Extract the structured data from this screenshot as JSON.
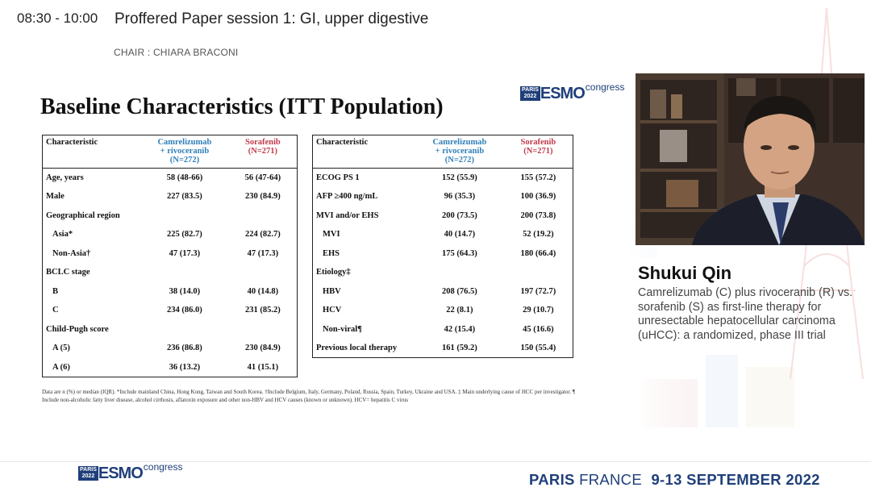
{
  "session": {
    "time": "08:30 - 10:00",
    "title": "Proffered Paper session 1: GI, upper digestive",
    "chair": "CHAIR : CHIARA BRACONI"
  },
  "logo": {
    "city": "PARIS",
    "year": "2022",
    "brand": "ESMO",
    "suffix": "congress"
  },
  "slide": {
    "title": "Baseline Characteristics (ITT Population)",
    "headers": {
      "characteristic": "Characteristic",
      "arm1_line1": "Camrelizumab",
      "arm1_line2": "+ rivoceranib",
      "arm1_n": "(N=272)",
      "arm2_line1": "Sorafenib",
      "arm2_n": "(N=271)"
    },
    "left_rows": [
      {
        "label": "Age, years",
        "a": "58 (48-66)",
        "b": "56 (47-64)",
        "indent": false
      },
      {
        "label": "Male",
        "a": "227 (83.5)",
        "b": "230 (84.9)",
        "indent": false
      },
      {
        "label": "Geographical region",
        "a": "",
        "b": "",
        "indent": false
      },
      {
        "label": "Asia*",
        "a": "225 (82.7)",
        "b": "224 (82.7)",
        "indent": true
      },
      {
        "label": "Non-Asia†",
        "a": "47 (17.3)",
        "b": "47 (17.3)",
        "indent": true
      },
      {
        "label": "BCLC stage",
        "a": "",
        "b": "",
        "indent": false
      },
      {
        "label": "B",
        "a": "38 (14.0)",
        "b": "40 (14.8)",
        "indent": true
      },
      {
        "label": "C",
        "a": "234 (86.0)",
        "b": "231 (85.2)",
        "indent": true
      },
      {
        "label": "Child-Pugh score",
        "a": "",
        "b": "",
        "indent": false
      },
      {
        "label": "A (5)",
        "a": "236 (86.8)",
        "b": "230 (84.9)",
        "indent": true
      },
      {
        "label": "A (6)",
        "a": "36 (13.2)",
        "b": "41 (15.1)",
        "indent": true
      }
    ],
    "right_rows": [
      {
        "label": "ECOG PS 1",
        "a": "152 (55.9)",
        "b": "155 (57.2)",
        "indent": false
      },
      {
        "label": "AFP ≥400 ng/mL",
        "a": "96 (35.3)",
        "b": "100 (36.9)",
        "indent": false
      },
      {
        "label": "MVI and/or EHS",
        "a": "200 (73.5)",
        "b": "200 (73.8)",
        "indent": false
      },
      {
        "label": "MVI",
        "a": "40 (14.7)",
        "b": "52 (19.2)",
        "indent": true
      },
      {
        "label": "EHS",
        "a": "175 (64.3)",
        "b": "180 (66.4)",
        "indent": true
      },
      {
        "label": "Etiology‡",
        "a": "",
        "b": "",
        "indent": false
      },
      {
        "label": "HBV",
        "a": "208 (76.5)",
        "b": "197 (72.7)",
        "indent": true
      },
      {
        "label": "HCV",
        "a": "22 (8.1)",
        "b": "29 (10.7)",
        "indent": true
      },
      {
        "label": "Non-viral¶",
        "a": "42 (15.4)",
        "b": "45 (16.6)",
        "indent": true
      },
      {
        "label": "Previous local therapy",
        "a": "161 (59.2)",
        "b": "150 (55.4)",
        "indent": false
      }
    ],
    "footnote": "Data are n (%) or median (IQR). *Include mainland China, Hong Kong, Taiwan and South Korea. †Include Belgium, Italy, Germany, Poland, Russia, Spain, Turkey, Ukraine and USA. ‡ Main underlying cause of HCC per investigator. ¶ Include non-alcoholic fatty liver disease, alcohol cirrhosis, aflatoxin exposure and other non-HBV and HCV causes (known or unknown). HCV= hepatitis C virus"
  },
  "speaker": {
    "name": "Shukui Qin",
    "talk": "Camrelizumab (C) plus rivoceranib (R) vs. sorafenib (S) as first-line therapy for unresectable hepatocellular carcinoma (uHCC): a randomized, phase III trial"
  },
  "footer": {
    "city": "PARIS",
    "country": "FRANCE",
    "dates": "9-13 SEPTEMBER 2022"
  },
  "colors": {
    "arm1": "#2f7fb8",
    "arm2": "#c1394a",
    "brand": "#1f3f7a"
  }
}
